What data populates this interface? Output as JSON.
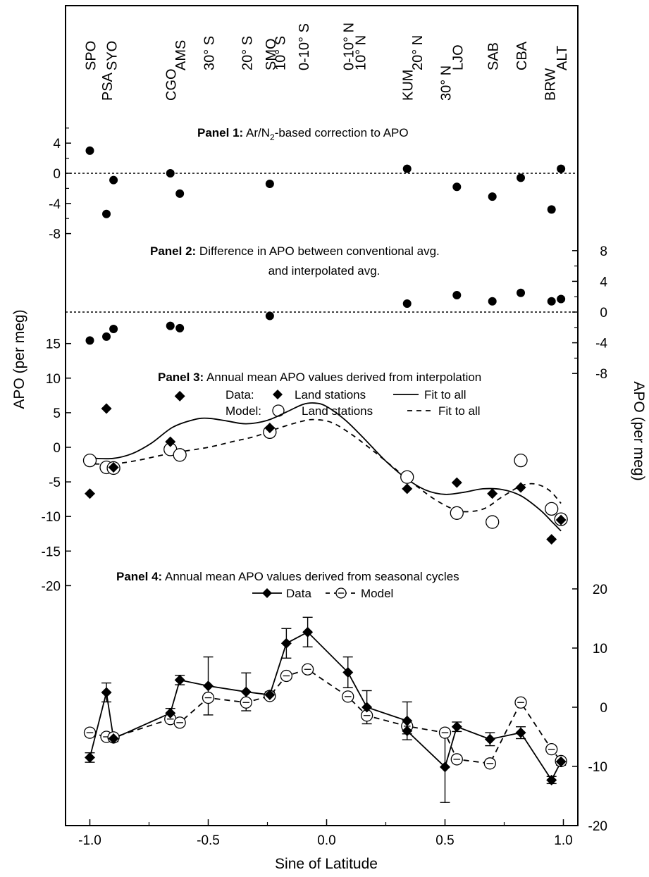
{
  "chart_data": {
    "type": "scatter",
    "xlabel": "Sine of Latitude",
    "ylabel_left": "APO (per meg)",
    "ylabel_right": "APO (per meg)",
    "x_axis": {
      "range": [
        -1.1,
        1.1
      ],
      "ticks": [
        -1.0,
        -0.5,
        0.0,
        0.5,
        1.0
      ],
      "tick_labels": [
        "-1.0",
        "-0.5",
        "0.0",
        "0.5",
        "1.0"
      ]
    },
    "stations": [
      {
        "label": "SPO",
        "x": -1.0,
        "row": 1
      },
      {
        "label": "PSA",
        "x": -0.93,
        "row": 2
      },
      {
        "label": "SYO",
        "x": -0.91,
        "row": 1
      },
      {
        "label": "CGO",
        "x": -0.66,
        "row": 2
      },
      {
        "label": "AMS",
        "x": -0.62,
        "row": 1
      },
      {
        "label": "30° S",
        "x": -0.5,
        "row": 1
      },
      {
        "label": "20° S",
        "x": -0.34,
        "row": 1
      },
      {
        "label": "SMO",
        "x": -0.24,
        "row": 1
      },
      {
        "label": "10° S",
        "x": -0.2,
        "row": 1
      },
      {
        "label": "0-10° S",
        "x": -0.1,
        "row": 1
      },
      {
        "label": "0-10° N",
        "x": 0.09,
        "row": 1
      },
      {
        "label": "10° N",
        "x": 0.14,
        "row": 1
      },
      {
        "label": "KUM",
        "x": 0.34,
        "row": 2
      },
      {
        "label": "20° N",
        "x": 0.38,
        "row": 1
      },
      {
        "label": "30° N",
        "x": 0.5,
        "row": 2
      },
      {
        "label": "LJO",
        "x": 0.55,
        "row": 1
      },
      {
        "label": "SAB",
        "x": 0.7,
        "row": 1
      },
      {
        "label": "CBA",
        "x": 0.82,
        "row": 1
      },
      {
        "label": "BRW",
        "x": 0.94,
        "row": 2
      },
      {
        "label": "ALT",
        "x": 0.99,
        "row": 1
      }
    ],
    "panels": [
      {
        "id": "panel1",
        "title_bold": "Panel 1:",
        "title_rest_a": "Ar/N",
        "title_sub": "2",
        "title_rest_b": "-based correction to APO",
        "axis": "left",
        "ticks": [
          4,
          0,
          -4,
          -8
        ],
        "tick_labels": [
          "4",
          "0",
          "-4",
          "-8"
        ],
        "points": [
          {
            "x": -1.0,
            "y": 3.0
          },
          {
            "x": -0.93,
            "y": -5.4
          },
          {
            "x": -0.9,
            "y": -0.9
          },
          {
            "x": -0.66,
            "y": 0.0
          },
          {
            "x": -0.62,
            "y": -2.7
          },
          {
            "x": -0.24,
            "y": -1.4
          },
          {
            "x": 0.34,
            "y": 0.6
          },
          {
            "x": 0.55,
            "y": -1.8
          },
          {
            "x": 0.7,
            "y": -3.1
          },
          {
            "x": 0.82,
            "y": -0.6
          },
          {
            "x": 0.95,
            "y": -4.8
          },
          {
            "x": 0.99,
            "y": 0.6
          }
        ]
      },
      {
        "id": "panel2",
        "title_bold": "Panel 2:",
        "title_rest": "Difference in APO between conventional avg.",
        "title_line2": "and interpolated avg.",
        "axis": "right",
        "ticks": [
          8,
          4,
          0,
          -4,
          -8
        ],
        "tick_labels": [
          "8",
          "4",
          "0",
          "-4",
          "-8"
        ],
        "points": [
          {
            "x": -1.0,
            "y": -3.7
          },
          {
            "x": -0.93,
            "y": -3.2
          },
          {
            "x": -0.9,
            "y": -2.2
          },
          {
            "x": -0.66,
            "y": -1.8
          },
          {
            "x": -0.62,
            "y": -2.1
          },
          {
            "x": -0.24,
            "y": -0.5
          },
          {
            "x": 0.34,
            "y": 1.1
          },
          {
            "x": 0.55,
            "y": 2.2
          },
          {
            "x": 0.7,
            "y": 1.4
          },
          {
            "x": 0.82,
            "y": 2.5
          },
          {
            "x": 0.95,
            "y": 1.4
          },
          {
            "x": 0.99,
            "y": 1.7
          }
        ]
      },
      {
        "id": "panel3",
        "title_bold": "Panel 3:",
        "title_rest": "Annual mean APO values derived from interpolation",
        "legend_data_label": "Data:",
        "legend_model_label": "Model:",
        "legend_land_label": "Land stations",
        "legend_fit_label": "Fit to all",
        "axis": "left",
        "ticks": [
          15,
          10,
          5,
          0,
          -5,
          -10,
          -15,
          -20
        ],
        "tick_labels": [
          "15",
          "10",
          "5",
          "0",
          "-5",
          "-10",
          "-15",
          "-20"
        ],
        "data_points": [
          {
            "x": -1.0,
            "y": -6.7
          },
          {
            "x": -0.93,
            "y": 5.6
          },
          {
            "x": -0.9,
            "y": -2.9
          },
          {
            "x": -0.66,
            "y": 0.8
          },
          {
            "x": -0.62,
            "y": 7.4
          },
          {
            "x": -0.24,
            "y": 2.8
          },
          {
            "x": 0.34,
            "y": -6.0
          },
          {
            "x": 0.55,
            "y": -5.1
          },
          {
            "x": 0.7,
            "y": -6.7
          },
          {
            "x": 0.82,
            "y": -5.8
          },
          {
            "x": 0.95,
            "y": -13.3
          },
          {
            "x": 0.99,
            "y": -10.5
          }
        ],
        "model_points": [
          {
            "x": -1.0,
            "y": -1.9
          },
          {
            "x": -0.93,
            "y": -2.9
          },
          {
            "x": -0.9,
            "y": -3.0
          },
          {
            "x": -0.66,
            "y": -0.3
          },
          {
            "x": -0.62,
            "y": -1.1
          },
          {
            "x": -0.24,
            "y": 2.2
          },
          {
            "x": 0.34,
            "y": -4.3
          },
          {
            "x": 0.55,
            "y": -9.5
          },
          {
            "x": 0.7,
            "y": -10.8
          },
          {
            "x": 0.82,
            "y": -1.9
          },
          {
            "x": 0.95,
            "y": -8.9
          },
          {
            "x": 0.99,
            "y": -10.4
          }
        ],
        "data_fit": [
          {
            "x": -0.98,
            "y": -1.6
          },
          {
            "x": -0.9,
            "y": -1.6
          },
          {
            "x": -0.82,
            "y": -0.9
          },
          {
            "x": -0.74,
            "y": 0.6
          },
          {
            "x": -0.65,
            "y": 2.9
          },
          {
            "x": -0.56,
            "y": 4.0
          },
          {
            "x": -0.5,
            "y": 4.2
          },
          {
            "x": -0.42,
            "y": 3.8
          },
          {
            "x": -0.34,
            "y": 3.4
          },
          {
            "x": -0.25,
            "y": 3.9
          },
          {
            "x": -0.17,
            "y": 5.1
          },
          {
            "x": -0.1,
            "y": 6.2
          },
          {
            "x": -0.05,
            "y": 6.4
          },
          {
            "x": 0.0,
            "y": 5.9
          },
          {
            "x": 0.08,
            "y": 3.9
          },
          {
            "x": 0.16,
            "y": 1.2
          },
          {
            "x": 0.25,
            "y": -2.0
          },
          {
            "x": 0.34,
            "y": -4.6
          },
          {
            "x": 0.42,
            "y": -6.2
          },
          {
            "x": 0.5,
            "y": -6.8
          },
          {
            "x": 0.58,
            "y": -6.5
          },
          {
            "x": 0.66,
            "y": -6.0
          },
          {
            "x": 0.74,
            "y": -6.1
          },
          {
            "x": 0.82,
            "y": -7.0
          },
          {
            "x": 0.9,
            "y": -9.0
          },
          {
            "x": 0.95,
            "y": -10.7
          },
          {
            "x": 0.99,
            "y": -12.1
          }
        ],
        "model_fit": [
          {
            "x": -0.98,
            "y": -2.4
          },
          {
            "x": -0.9,
            "y": -2.4
          },
          {
            "x": -0.8,
            "y": -1.9
          },
          {
            "x": -0.66,
            "y": -0.9
          },
          {
            "x": -0.5,
            "y": 0.0
          },
          {
            "x": -0.4,
            "y": 0.8
          },
          {
            "x": -0.3,
            "y": 1.6
          },
          {
            "x": -0.2,
            "y": 2.8
          },
          {
            "x": -0.1,
            "y": 3.8
          },
          {
            "x": -0.05,
            "y": 4.0
          },
          {
            "x": 0.02,
            "y": 3.6
          },
          {
            "x": 0.1,
            "y": 2.0
          },
          {
            "x": 0.2,
            "y": -0.6
          },
          {
            "x": 0.3,
            "y": -3.4
          },
          {
            "x": 0.38,
            "y": -5.6
          },
          {
            "x": 0.46,
            "y": -7.6
          },
          {
            "x": 0.54,
            "y": -9.0
          },
          {
            "x": 0.6,
            "y": -9.3
          },
          {
            "x": 0.67,
            "y": -8.8
          },
          {
            "x": 0.74,
            "y": -7.2
          },
          {
            "x": 0.82,
            "y": -5.6
          },
          {
            "x": 0.88,
            "y": -5.3
          },
          {
            "x": 0.94,
            "y": -6.2
          },
          {
            "x": 0.99,
            "y": -8.1
          }
        ]
      },
      {
        "id": "panel4",
        "title_bold": "Panel 4:",
        "title_rest": "Annual mean APO values derived from seasonal cycles",
        "legend_data_label": "Data",
        "legend_model_label": "Model",
        "axis": "right",
        "ticks": [
          20,
          10,
          0,
          -10,
          -20
        ],
        "tick_labels": [
          "20",
          "10",
          "0",
          "-10",
          "-20"
        ],
        "data_series": [
          {
            "x": -1.0,
            "y": -8.5,
            "err": 0.8
          },
          {
            "x": -0.93,
            "y": 2.5,
            "err": 1.6
          },
          {
            "x": -0.9,
            "y": -5.3,
            "err": 0.5
          },
          {
            "x": -0.66,
            "y": -1.0,
            "err": 0.8
          },
          {
            "x": -0.62,
            "y": 4.6,
            "err": 0.8
          },
          {
            "x": -0.5,
            "y": 3.6,
            "err": 4.9
          },
          {
            "x": -0.34,
            "y": 2.6,
            "err": 3.2
          },
          {
            "x": -0.24,
            "y": 2.1,
            "err": 0.5
          },
          {
            "x": -0.17,
            "y": 10.8,
            "err": 2.5
          },
          {
            "x": -0.08,
            "y": 12.7,
            "err": 2.5
          },
          {
            "x": 0.09,
            "y": 5.9,
            "err": 2.6
          },
          {
            "x": 0.17,
            "y": 0.0,
            "err": 2.8
          },
          {
            "x": 0.34,
            "y": -2.3,
            "err": 3.2
          },
          {
            "x": 0.34,
            "y": -4.0,
            "err": 0.5
          },
          {
            "x": 0.5,
            "y": -10.1,
            "err": 6.0
          },
          {
            "x": 0.55,
            "y": -3.3,
            "err": 0.8
          },
          {
            "x": 0.69,
            "y": -5.4,
            "err": 1.1
          },
          {
            "x": 0.82,
            "y": -4.3,
            "err": 1.0
          },
          {
            "x": 0.95,
            "y": -12.3,
            "err": 0.6
          },
          {
            "x": 0.99,
            "y": -9.2,
            "err": 0.6
          }
        ],
        "model_series": [
          {
            "x": -1.0,
            "y": -4.3
          },
          {
            "x": -0.93,
            "y": -5.0
          },
          {
            "x": -0.9,
            "y": -5.1
          },
          {
            "x": -0.66,
            "y": -2.0
          },
          {
            "x": -0.62,
            "y": -2.6
          },
          {
            "x": -0.5,
            "y": 1.6
          },
          {
            "x": -0.34,
            "y": 0.8
          },
          {
            "x": -0.24,
            "y": 1.9
          },
          {
            "x": -0.17,
            "y": 5.3
          },
          {
            "x": -0.08,
            "y": 6.4
          },
          {
            "x": 0.09,
            "y": 1.8
          },
          {
            "x": 0.17,
            "y": -1.4
          },
          {
            "x": 0.34,
            "y": -3.2
          },
          {
            "x": 0.5,
            "y": -4.3
          },
          {
            "x": 0.55,
            "y": -8.8
          },
          {
            "x": 0.69,
            "y": -9.5
          },
          {
            "x": 0.82,
            "y": 0.8
          },
          {
            "x": 0.95,
            "y": -7.1
          },
          {
            "x": 0.99,
            "y": -9.1
          }
        ]
      }
    ]
  }
}
